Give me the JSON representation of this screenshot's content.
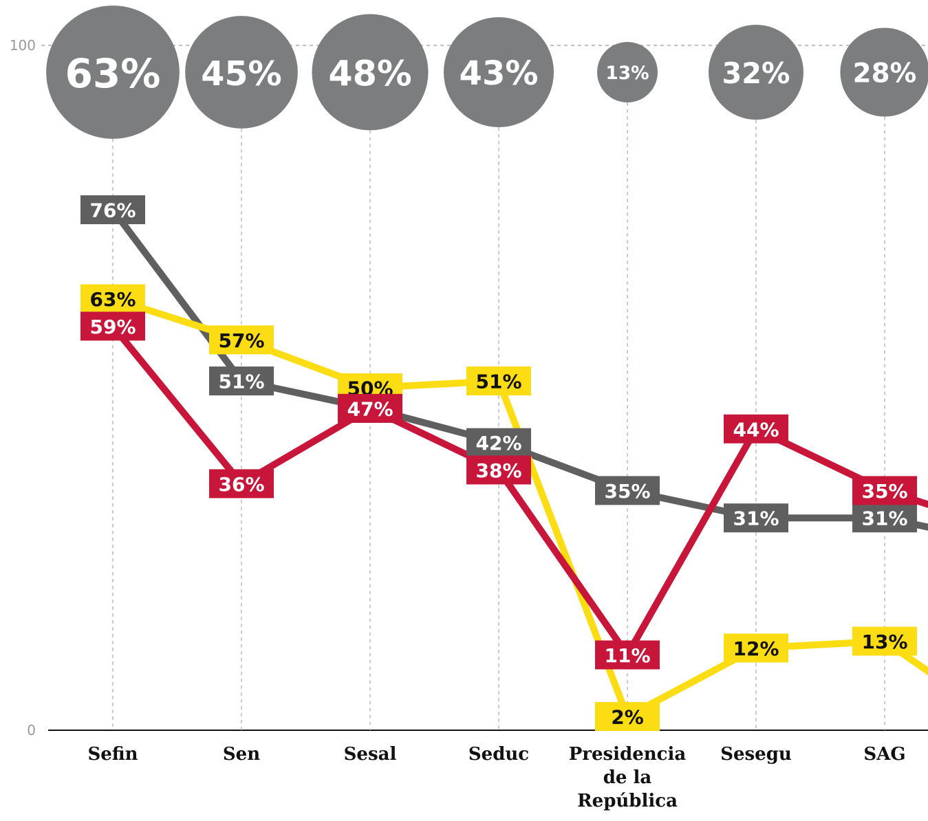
{
  "chart_data": {
    "type": "line",
    "categories": [
      "Sefin",
      "Sen",
      "Sesal",
      "Seduc",
      "Presidencia de la República",
      "Sesegu",
      "SAG",
      null
    ],
    "series": [
      {
        "name": null,
        "color": "#5f5f5f",
        "text_color": "#ffffff",
        "values": [
          76,
          51,
          47,
          42,
          35,
          31,
          31,
          27
        ],
        "value_labels": [
          "76%",
          "51%",
          "47%",
          "42%",
          "35%",
          "31%",
          "31%",
          null
        ]
      },
      {
        "name": null,
        "color": "#fcdc12",
        "text_color": "#111111",
        "values": [
          63,
          57,
          50,
          51,
          2,
          12,
          13,
          0
        ],
        "value_labels": [
          "63%",
          "57%",
          "50%",
          "51%",
          "2%",
          "12%",
          "13%",
          null
        ]
      },
      {
        "name": null,
        "color": "#c8163a",
        "text_color": "#ffffff",
        "values": [
          59,
          36,
          47,
          38,
          11,
          44,
          35,
          29
        ],
        "value_labels": [
          "59%",
          "36%",
          "47%",
          "38%",
          "11%",
          "44%",
          "35%",
          null
        ]
      }
    ],
    "bubbles": {
      "color": "#7b7d7e",
      "values": [
        63,
        45,
        48,
        43,
        13,
        32,
        28,
        null
      ],
      "value_labels": [
        "63%",
        "45%",
        "48%",
        "43%",
        "13%",
        "32%",
        "28%",
        null
      ]
    },
    "ylim": [
      0,
      100
    ],
    "yticks": [
      0,
      100
    ],
    "grid": true
  }
}
